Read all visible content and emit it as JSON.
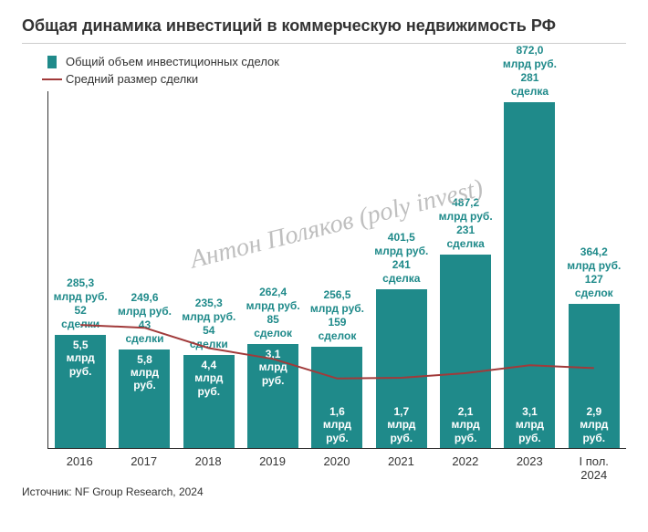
{
  "title": "Общая динамика инвестиций в коммерческую недвижимость РФ",
  "legend": {
    "bar_label": "Общий объем инвестиционных сделок",
    "line_label": "Средний размер сделки"
  },
  "watermark": "Антон Поляков (poly invest)",
  "colors": {
    "bar": "#1f8a8a",
    "line": "#a13a3a",
    "label_above": "#1f8a8a",
    "bar_inside_text": "#ffffff",
    "axis": "#333333",
    "background": "#ffffff",
    "title": "#333333"
  },
  "chart": {
    "type": "bar+line",
    "y_max": 900,
    "unit_value": "млрд руб.",
    "unit_avg": "млрд\nруб.",
    "categories": [
      "2016",
      "2017",
      "2018",
      "2019",
      "2020",
      "2021",
      "2022",
      "2023",
      "I пол.\n2024"
    ],
    "bars": [
      {
        "value": 285.3,
        "value_str": "285,3",
        "deals": 52,
        "deals_word": "сделки",
        "avg": 5.5,
        "avg_str": "5,5",
        "inside_pos": "top"
      },
      {
        "value": 249.6,
        "value_str": "249,6",
        "deals": 43,
        "deals_word": "сделки",
        "avg": 5.8,
        "avg_str": "5,8",
        "inside_pos": "top"
      },
      {
        "value": 235.3,
        "value_str": "235,3",
        "deals": 54,
        "deals_word": "сделки",
        "avg": 4.4,
        "avg_str": "4,4",
        "inside_pos": "top"
      },
      {
        "value": 262.4,
        "value_str": "262,4",
        "deals": 85,
        "deals_word": "сделок",
        "avg": 3.1,
        "avg_str": "3,1",
        "inside_pos": "top"
      },
      {
        "value": 256.5,
        "value_str": "256,5",
        "deals": 159,
        "deals_word": "сделок",
        "avg": 1.6,
        "avg_str": "1,6",
        "inside_pos": "bottom"
      },
      {
        "value": 401.5,
        "value_str": "401,5",
        "deals": 241,
        "deals_word": "сделка",
        "avg": 1.7,
        "avg_str": "1,7",
        "inside_pos": "bottom"
      },
      {
        "value": 487.2,
        "value_str": "487,2",
        "deals": 231,
        "deals_word": "сделка",
        "avg": 2.1,
        "avg_str": "2,1",
        "inside_pos": "bottom"
      },
      {
        "value": 872.0,
        "value_str": "872,0",
        "deals": 281,
        "deals_word": "сделка",
        "avg": 3.1,
        "avg_str": "3,1",
        "inside_pos": "bottom"
      },
      {
        "value": 364.2,
        "value_str": "364,2",
        "deals": 127,
        "deals_word": "сделок",
        "avg": 2.9,
        "avg_str": "2,9",
        "inside_pos": "bottom"
      }
    ],
    "line_y_relative": [
      0.655,
      0.663,
      0.72,
      0.75,
      0.805,
      0.803,
      0.79,
      0.768,
      0.776
    ]
  },
  "source": "Источник: NF Group Research, 2024"
}
